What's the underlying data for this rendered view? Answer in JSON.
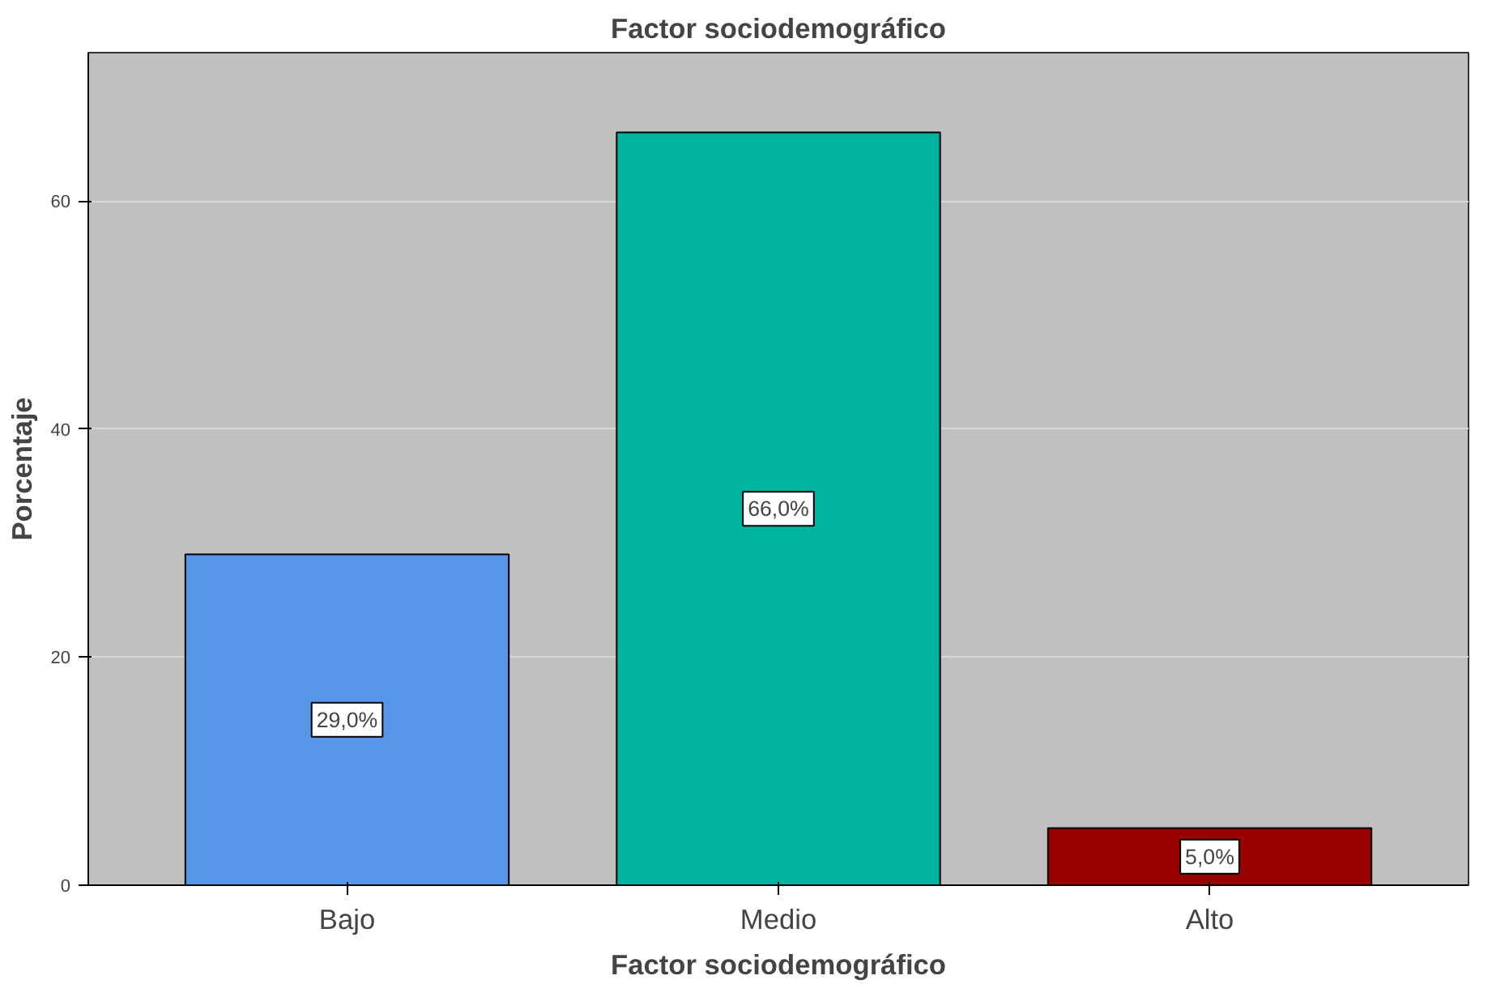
{
  "chart_data": {
    "type": "bar",
    "title": "Factor sociodemográfico",
    "xlabel": "Factor sociodemográfico",
    "ylabel": "Porcentaje",
    "categories": [
      "Bajo",
      "Medio",
      "Alto"
    ],
    "values": [
      29.0,
      66.0,
      5.0
    ],
    "colors": [
      "#5596e6",
      "#00b3a0",
      "#990000"
    ],
    "value_labels": [
      "29,0%",
      "66,0%",
      "5,0%"
    ],
    "ylim": [
      0,
      73
    ],
    "yticks": [
      0,
      20,
      40,
      60
    ],
    "grid": "y"
  }
}
